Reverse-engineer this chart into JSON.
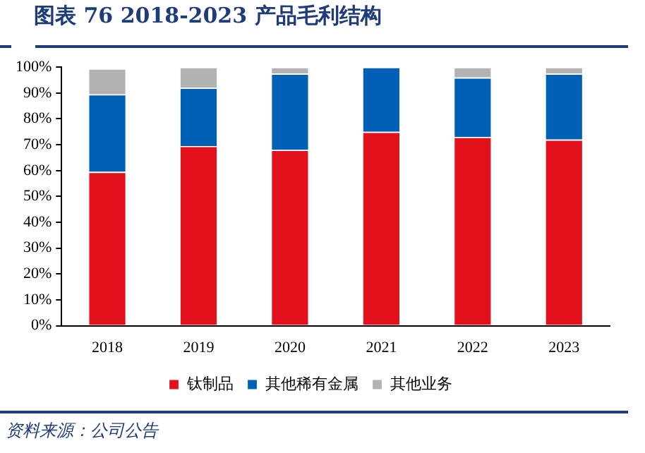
{
  "chart_data": {
    "type": "bar",
    "title": "图表 76 2018-2023 产品毛利结构",
    "annotations": [
      "资料来源：公司公告"
    ],
    "categories": [
      "2018",
      "2019",
      "2020",
      "2021",
      "2022",
      "2023"
    ],
    "stacked": true,
    "series": [
      {
        "name": "钛制品",
        "color": "#e3111b",
        "values": [
          59.5,
          69.5,
          68,
          75,
          73,
          72
        ]
      },
      {
        "name": "其他稀有金属",
        "color": "#0060b6",
        "values": [
          30,
          22.5,
          29.5,
          25,
          23,
          25.5
        ]
      },
      {
        "name": "其他业务",
        "color": "#b2b2b2",
        "values": [
          10,
          8,
          2.5,
          0,
          4,
          2.5
        ]
      }
    ],
    "ylim": [
      0,
      100
    ],
    "yticks": [
      {
        "value": 0,
        "label": "0%"
      },
      {
        "value": 10,
        "label": "10%"
      },
      {
        "value": 20,
        "label": "20%"
      },
      {
        "value": 30,
        "label": "30%"
      },
      {
        "value": 40,
        "label": "40%"
      },
      {
        "value": 50,
        "label": "50%"
      },
      {
        "value": 60,
        "label": "60%"
      },
      {
        "value": 70,
        "label": "70%"
      },
      {
        "value": 80,
        "label": "80%"
      },
      {
        "value": 90,
        "label": "90%"
      },
      {
        "value": 100,
        "label": "100%"
      }
    ],
    "grid": false,
    "legend": "bottom"
  }
}
